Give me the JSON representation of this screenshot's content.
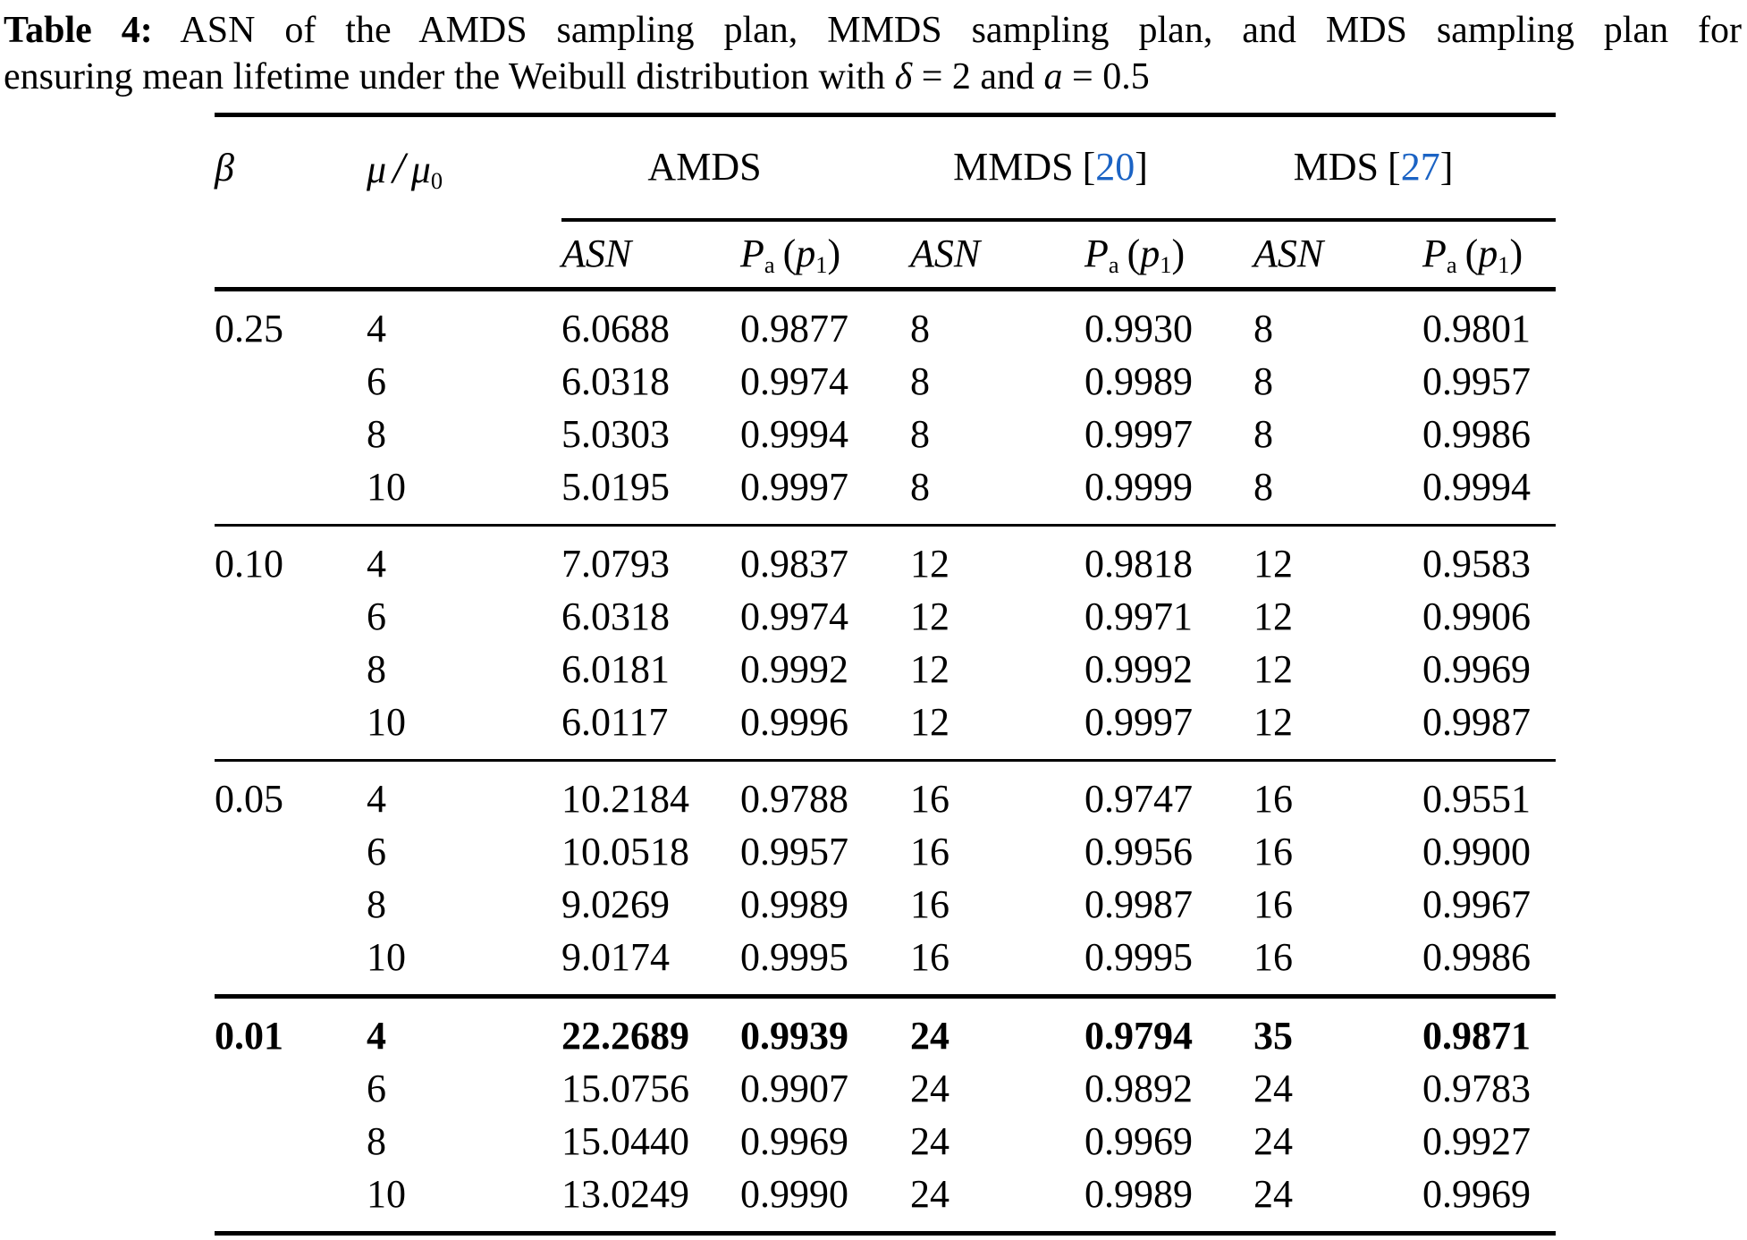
{
  "colors": {
    "background": "#ffffff",
    "text": "#000000",
    "citation_link": "#1b63c4"
  },
  "caption": {
    "label": "Table 4:",
    "line1": "ASN of the AMDS sampling plan, MMDS sampling plan, and MDS sampling plan for",
    "line2_pre": "ensuring mean lifetime under the Weibull distribution with ",
    "delta": "δ",
    "line2_mid": " = 2 and ",
    "a": "a",
    "line2_end": " = 0.5"
  },
  "table": {
    "header": {
      "beta": "β",
      "mu": "μ",
      "slash": "/",
      "mu0": "μ",
      "mu0_sub": "0",
      "groups": [
        {
          "label": "AMDS"
        },
        {
          "label": "MMDS",
          "cite_open": "[",
          "cite": "20",
          "cite_close": "]"
        },
        {
          "label": "MDS",
          "cite_open": "[",
          "cite": "27",
          "cite_close": "]"
        }
      ],
      "sub": {
        "asn": "ASN",
        "P": "P",
        "a_sub": "a",
        "lparen": "(",
        "p": "p",
        "one_sub": "1",
        "rparen": ")"
      }
    },
    "blocks": [
      {
        "beta": "0.25",
        "rows": [
          {
            "mu_ratio": "4",
            "bold": false,
            "values": [
              "6.0688",
              "0.9877",
              "8",
              "0.9930",
              "8",
              "0.9801"
            ]
          },
          {
            "mu_ratio": "6",
            "bold": false,
            "values": [
              "6.0318",
              "0.9974",
              "8",
              "0.9989",
              "8",
              "0.9957"
            ]
          },
          {
            "mu_ratio": "8",
            "bold": false,
            "values": [
              "5.0303",
              "0.9994",
              "8",
              "0.9997",
              "8",
              "0.9986"
            ]
          },
          {
            "mu_ratio": "10",
            "bold": false,
            "values": [
              "5.0195",
              "0.9997",
              "8",
              "0.9999",
              "8",
              "0.9994"
            ]
          }
        ]
      },
      {
        "beta": "0.10",
        "rows": [
          {
            "mu_ratio": "4",
            "bold": false,
            "values": [
              "7.0793",
              "0.9837",
              "12",
              "0.9818",
              "12",
              "0.9583"
            ]
          },
          {
            "mu_ratio": "6",
            "bold": false,
            "values": [
              "6.0318",
              "0.9974",
              "12",
              "0.9971",
              "12",
              "0.9906"
            ]
          },
          {
            "mu_ratio": "8",
            "bold": false,
            "values": [
              "6.0181",
              "0.9992",
              "12",
              "0.9992",
              "12",
              "0.9969"
            ]
          },
          {
            "mu_ratio": "10",
            "bold": false,
            "values": [
              "6.0117",
              "0.9996",
              "12",
              "0.9997",
              "12",
              "0.9987"
            ]
          }
        ]
      },
      {
        "beta": "0.05",
        "rows": [
          {
            "mu_ratio": "4",
            "bold": false,
            "values": [
              "10.2184",
              "0.9788",
              "16",
              "0.9747",
              "16",
              "0.9551"
            ]
          },
          {
            "mu_ratio": "6",
            "bold": false,
            "values": [
              "10.0518",
              "0.9957",
              "16",
              "0.9956",
              "16",
              "0.9900"
            ]
          },
          {
            "mu_ratio": "8",
            "bold": false,
            "values": [
              "9.0269",
              "0.9989",
              "16",
              "0.9987",
              "16",
              "0.9967"
            ]
          },
          {
            "mu_ratio": "10",
            "bold": false,
            "values": [
              "9.0174",
              "0.9995",
              "16",
              "0.9995",
              "16",
              "0.9986"
            ]
          }
        ]
      },
      {
        "beta": "0.01",
        "rows": [
          {
            "mu_ratio": "4",
            "bold": true,
            "values": [
              "22.2689",
              "0.9939",
              "24",
              "0.9794",
              "35",
              "0.9871"
            ]
          },
          {
            "mu_ratio": "6",
            "bold": false,
            "values": [
              "15.0756",
              "0.9907",
              "24",
              "0.9892",
              "24",
              "0.9783"
            ]
          },
          {
            "mu_ratio": "8",
            "bold": false,
            "values": [
              "15.0440",
              "0.9969",
              "24",
              "0.9969",
              "24",
              "0.9927"
            ]
          },
          {
            "mu_ratio": "10",
            "bold": false,
            "values": [
              "13.0249",
              "0.9990",
              "24",
              "0.9989",
              "24",
              "0.9969"
            ]
          }
        ]
      }
    ]
  }
}
